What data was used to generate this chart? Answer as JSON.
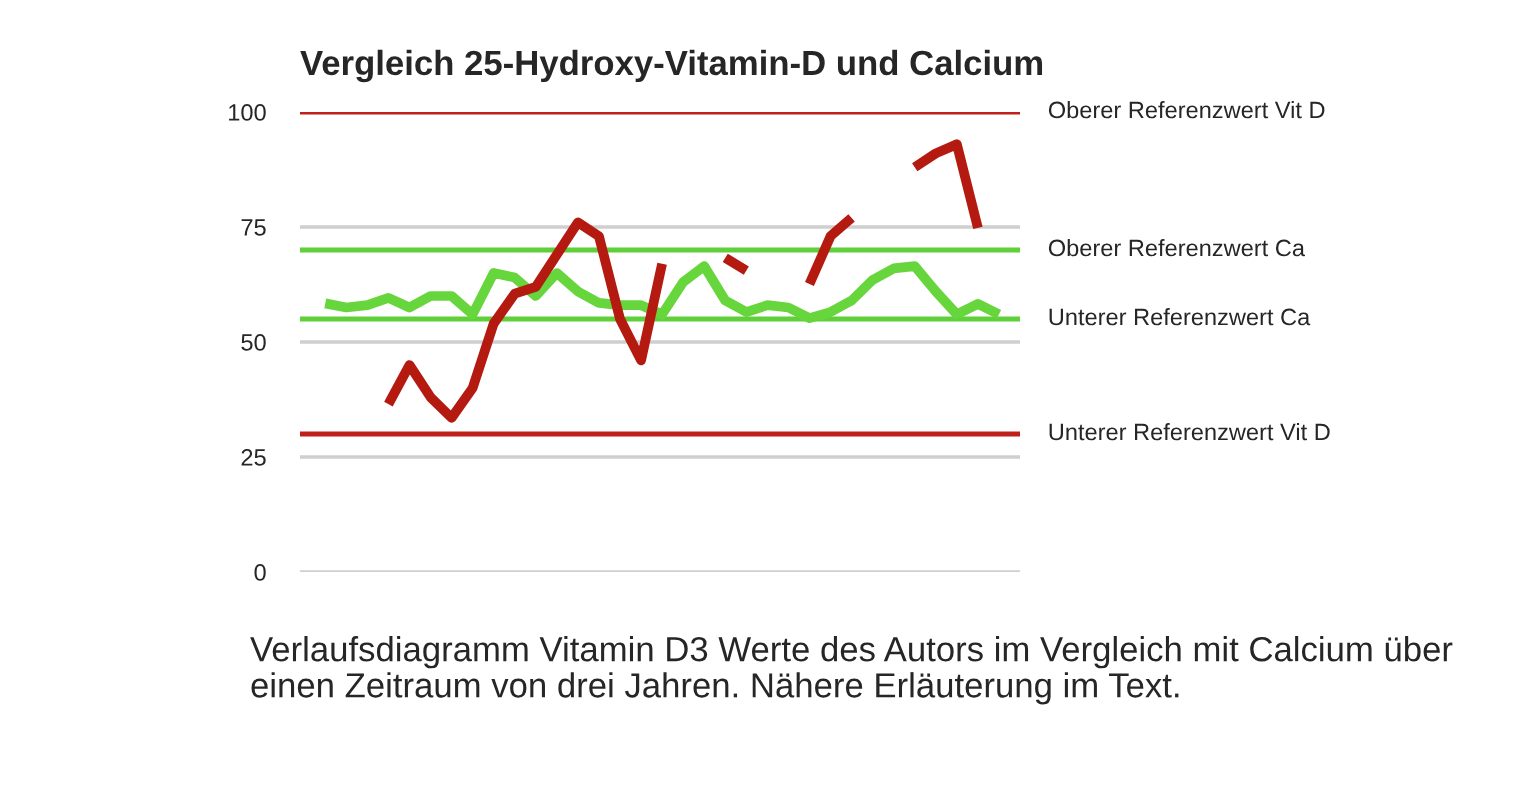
{
  "chart_data": {
    "type": "line",
    "title": "Vergleich 25-Hydroxy-Vitamin-D und Calcium",
    "categories": [
      null,
      null,
      null,
      null,
      null,
      null,
      null,
      null,
      null,
      null,
      null,
      null,
      null,
      null,
      null,
      null,
      null,
      null,
      null,
      null,
      null,
      null,
      null,
      null,
      null,
      null,
      null,
      null,
      null,
      null,
      null,
      null,
      null
    ],
    "series": [
      {
        "color": "#66d63c",
        "values": [
          58.4,
          57.5,
          58,
          59.6,
          57.5,
          60,
          60,
          56,
          65,
          64,
          60,
          65,
          61,
          58.5,
          58,
          58,
          56,
          63,
          66.5,
          59,
          56.5,
          58,
          57.5,
          55.2,
          56.5,
          59,
          63.5,
          66,
          66.5,
          61,
          56,
          58.3,
          56
        ]
      },
      {
        "color": "#b51a10",
        "values": [
          null,
          null,
          null,
          36.5,
          45,
          38,
          33.5,
          40,
          54,
          60.5,
          62,
          69,
          76,
          73,
          55,
          46,
          67,
          null,
          null,
          68.3,
          65.5,
          null,
          null,
          62.6,
          73,
          77,
          null,
          null,
          88,
          91,
          93,
          74.8,
          null
        ]
      }
    ],
    "ylim": [
      0,
      100
    ],
    "yticks": [
      0,
      25,
      50,
      75,
      100
    ],
    "grid": "y",
    "tick_labels": "y",
    "legend": false,
    "line_style": "solid",
    "marker": "none",
    "ref_lines": [
      {
        "axis": "y",
        "value": 100,
        "label": "Oberer Referenzwert Vit D",
        "color": "#c0201a"
      },
      {
        "axis": "y",
        "value": 70,
        "label": "Oberer Referenzwert Ca",
        "color": "#5fd03a"
      },
      {
        "axis": "y",
        "value": 55,
        "label": "Unterer Referenzwert Ca",
        "color": "#5fd03a"
      },
      {
        "axis": "y",
        "value": 30,
        "label": "Unterer Referenzwert Vit D",
        "color": "#c0201a"
      }
    ],
    "annotations": [
      "Verlaufsdiagramm Vitamin D3 Werte des Autors im Vergleich mit Calcium über einen Zeitraum von drei Jahren. Nähere Erläuterung im Text."
    ]
  }
}
